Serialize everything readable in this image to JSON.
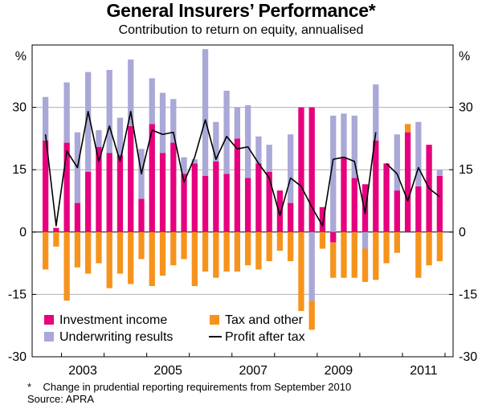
{
  "title": "General Insurers’ Performance*",
  "subtitle": "Contribution to return on equity, annualised",
  "footnote": "*    Change in prudential reporting requirements from September 2010",
  "source": "Source: APRA",
  "colors": {
    "investment_income": "#e6007e",
    "underwriting_results": "#a9a8d7",
    "tax_and_other": "#f6931d",
    "profit_after_tax": "#000000",
    "gridline": "#b0b0b0"
  },
  "chart_data": {
    "type": "bar",
    "stacked": true,
    "title": "General Insurers’ Performance*",
    "subtitle": "Contribution to return on equity, annualised",
    "xlabel": "",
    "ylabel": "%",
    "y_unit_left": "%",
    "y_unit_right": "%",
    "ylim": [
      -30,
      45
    ],
    "yticks": [
      -30,
      -15,
      0,
      15,
      30
    ],
    "ytick_labels": [
      "-30",
      "-15",
      "0",
      "15",
      "30"
    ],
    "x_tick_labels": [
      "2003",
      "2005",
      "2007",
      "2009",
      "2011"
    ],
    "categories": [
      "2002-Q3",
      "2002-Q4",
      "2003-Q1",
      "2003-Q2",
      "2003-Q3",
      "2003-Q4",
      "2004-Q1",
      "2004-Q2",
      "2004-Q3",
      "2004-Q4",
      "2005-Q1",
      "2005-Q2",
      "2005-Q3",
      "2005-Q4",
      "2006-Q1",
      "2006-Q2",
      "2006-Q3",
      "2006-Q4",
      "2007-Q1",
      "2007-Q2",
      "2007-Q3",
      "2007-Q4",
      "2008-Q1",
      "2008-Q2",
      "2008-Q3",
      "2008-Q4",
      "2009-Q1",
      "2009-Q2",
      "2009-Q3",
      "2009-Q4",
      "2010-Q1",
      "2010-Q2",
      "2010-Q3",
      "2010-Q4",
      "2011-Q1",
      "2011-Q2",
      "2011-Q3",
      "2011-Q4"
    ],
    "series": [
      {
        "name": "Investment income",
        "role": "positive",
        "values": [
          22,
          1,
          21.5,
          7,
          14.5,
          20.5,
          19,
          18.5,
          25.5,
          8,
          26,
          19,
          21.5,
          14,
          16.5,
          13.5,
          17,
          14,
          22.5,
          13,
          16.5,
          14.5,
          10,
          7,
          30,
          30,
          6,
          -2.5,
          18,
          13,
          11.5,
          22,
          16.5,
          10,
          24,
          11,
          21,
          13.5
        ]
      },
      {
        "name": "Underwriting results",
        "role": "positive",
        "values": [
          10.5,
          0,
          14.5,
          17,
          24,
          4,
          20,
          9,
          16,
          12,
          11,
          14.5,
          10.5,
          4,
          1,
          30.5,
          9.5,
          20,
          7.5,
          17.5,
          6.5,
          6.5,
          0,
          16.5,
          0,
          -16.5,
          0,
          28,
          10.5,
          15,
          -4,
          13.5,
          0,
          13.5,
          0,
          15.5,
          0,
          1.5
        ]
      },
      {
        "name": "Tax and other",
        "role": "negative",
        "values": [
          -9,
          -3.5,
          -16.5,
          -8.5,
          -10,
          -7.5,
          -13.5,
          -10,
          -12.5,
          -6.5,
          -13,
          -10.5,
          -8,
          -6.5,
          -13,
          -9.5,
          -11,
          -9.5,
          -9.5,
          -8,
          -9,
          -7,
          -4.5,
          -7,
          -19,
          -7,
          -4,
          -8.5,
          -11,
          -11,
          -8,
          -11.5,
          -7.5,
          -5,
          2,
          -11,
          -8,
          -7
        ]
      },
      {
        "name": "Profit after tax",
        "type": "line",
        "values": [
          23.5,
          1.5,
          19.5,
          15.5,
          29,
          17,
          25.5,
          17,
          29,
          14,
          24.5,
          23.5,
          24,
          12,
          18,
          27,
          17.5,
          23,
          20,
          20.5,
          16.5,
          13,
          4,
          13,
          11,
          6,
          1.5,
          17.5,
          18,
          17,
          4.5,
          24,
          16.5,
          14,
          7.5,
          15.5,
          10.5,
          8.5
        ],
        "break_after_index": 31
      }
    ],
    "legend": [
      {
        "label": "Investment income",
        "swatch": "investment_income"
      },
      {
        "label": "Tax and other",
        "swatch": "tax_and_other"
      },
      {
        "label": "Underwriting results",
        "swatch": "underwriting_results"
      },
      {
        "label": "Profit after tax",
        "swatch": "profit_after_tax"
      }
    ],
    "legend_position": "bottom-left",
    "grid": true
  }
}
